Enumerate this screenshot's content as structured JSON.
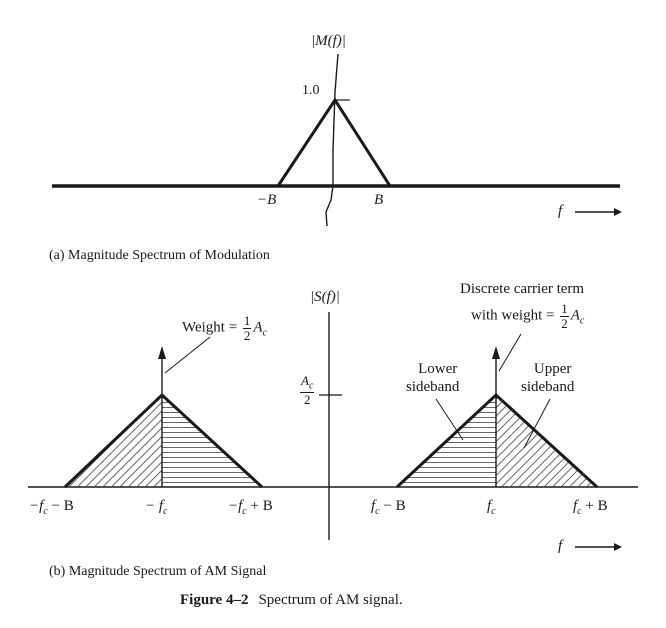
{
  "panel_a": {
    "y_axis_label": "|M(f)|",
    "peak_label": "1.0",
    "left_tick": "−B",
    "right_tick": "B",
    "x_axis_label": "f",
    "caption": "(a) Magnitude Spectrum of Modulation"
  },
  "panel_b": {
    "y_axis_label": "|S(f)|",
    "level_label_num": "A",
    "level_label_sub": "c",
    "level_label_den": "2",
    "weight_label_prefix": "Weight =",
    "weight_frac_num": "1",
    "weight_frac_den": "2",
    "weight_A": "A",
    "weight_sub": "c",
    "carrier_line1": "Discrete carrier term",
    "carrier_line2_prefix": "with weight =",
    "lower_sideband_line1": "Lower",
    "lower_sideband_line2": "sideband",
    "upper_sideband_line1": "Upper",
    "upper_sideband_line2": "sideband",
    "ticks": {
      "neg_fc_minus_B": "−f",
      "neg_fc_minus_B_rest": " − B",
      "neg_fc": "− f",
      "neg_fc_plus_B": "−f",
      "neg_fc_plus_B_rest": " + B",
      "fc_minus_B": "f",
      "fc_minus_B_rest": " − B",
      "fc": "f",
      "fc_plus_B": "f",
      "fc_plus_B_rest": " + B",
      "sub_c": "c"
    },
    "x_axis_label": "f",
    "caption": "(b) Magnitude Spectrum of AM Signal"
  },
  "figure_caption": {
    "number": "Figure 4–2",
    "text": "Spectrum of AM signal."
  }
}
